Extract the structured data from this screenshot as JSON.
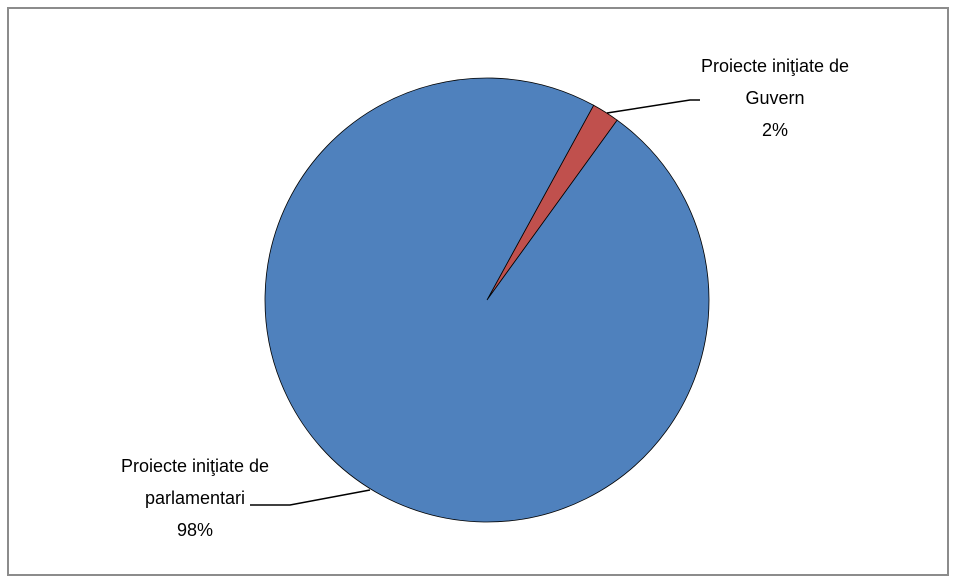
{
  "chart_data": {
    "type": "pie",
    "categories": [
      "Proiecte iniţiate de Guvern",
      "Proiecte iniţiate de parlamentari"
    ],
    "values": [
      2,
      98
    ],
    "value_labels": [
      "2%",
      "98%"
    ],
    "colors": [
      "#c0504d",
      "#4f81bd"
    ]
  }
}
